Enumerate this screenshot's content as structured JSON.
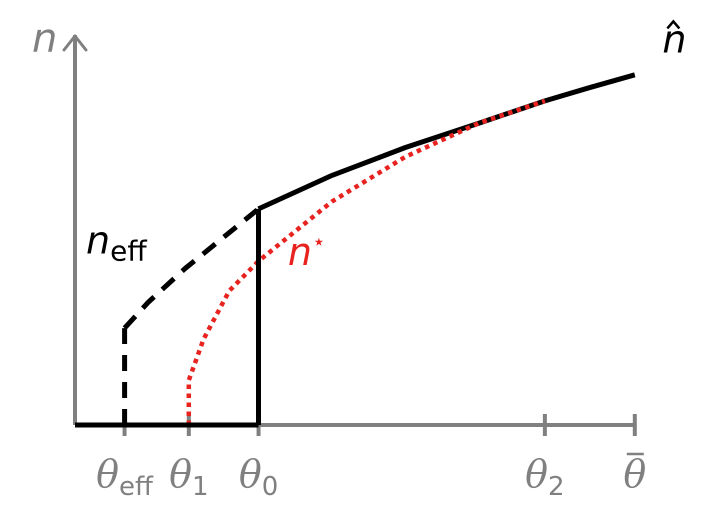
{
  "chart_data": {
    "type": "line",
    "title": "",
    "xlabel": "",
    "ylabel": "n",
    "grid": false,
    "legend": "none",
    "colors": {
      "axis": "#808080",
      "n_hat": "#000000",
      "n_eff": "#000000",
      "n_star": "#e8231f"
    },
    "xlim": [
      0,
      1.58
    ],
    "ylim": [
      0,
      1.02
    ],
    "x_ticks": [
      {
        "x": 0.135,
        "main": "θ",
        "sub": "eff",
        "accent": ""
      },
      {
        "x": 0.31,
        "main": "θ",
        "sub": "1",
        "accent": ""
      },
      {
        "x": 0.5,
        "main": "θ",
        "sub": "0",
        "accent": ""
      },
      {
        "x": 1.28,
        "main": "θ",
        "sub": "2",
        "accent": ""
      },
      {
        "x": 1.525,
        "main": "θ",
        "sub": "",
        "accent": "bar"
      }
    ],
    "series": [
      {
        "name": "n̂",
        "label_main": "n",
        "label_sub": "",
        "label_accent": "hat",
        "label_at": {
          "x": 1.6,
          "y": 1.0
        },
        "style": "solid",
        "points": [
          [
            0.5,
            0.58
          ],
          [
            0.7,
            0.67
          ],
          [
            0.9,
            0.745
          ],
          [
            1.1,
            0.81
          ],
          [
            1.28,
            0.87
          ],
          [
            1.4,
            0.905
          ],
          [
            1.525,
            0.94
          ]
        ]
      },
      {
        "name": "n_eff",
        "label_main": "n",
        "label_sub": "eff",
        "label_accent": "",
        "label_at": {
          "x": 0.03,
          "y": 0.46
        },
        "style": "dashed",
        "points": [
          [
            0.135,
            0.26
          ],
          [
            0.2,
            0.33
          ],
          [
            0.3,
            0.42
          ],
          [
            0.4,
            0.5
          ],
          [
            0.5,
            0.58
          ]
        ]
      },
      {
        "name": "n*",
        "label_main": "n",
        "label_sub": "",
        "label_sup": "⋆",
        "label_accent": "",
        "label_at": {
          "x": 0.58,
          "y": 0.43
        },
        "style": "dotted",
        "points": [
          [
            0.31,
            0.0
          ],
          [
            0.31,
            0.12
          ],
          [
            0.35,
            0.23
          ],
          [
            0.42,
            0.36
          ],
          [
            0.5,
            0.44
          ],
          [
            0.7,
            0.6
          ],
          [
            0.9,
            0.72
          ],
          [
            1.1,
            0.81
          ],
          [
            1.28,
            0.87
          ]
        ]
      },
      {
        "name": "n_eff_jump",
        "style": "dashed",
        "points": [
          [
            0.135,
            0.0
          ],
          [
            0.135,
            0.26
          ]
        ]
      },
      {
        "name": "n_hat_jump",
        "style": "solid",
        "points": [
          [
            0.5,
            0.0
          ],
          [
            0.5,
            0.58
          ]
        ]
      },
      {
        "name": "zero_segment",
        "style": "solid",
        "points": [
          [
            0.0,
            0.0
          ],
          [
            0.5,
            0.0
          ]
        ]
      }
    ]
  }
}
